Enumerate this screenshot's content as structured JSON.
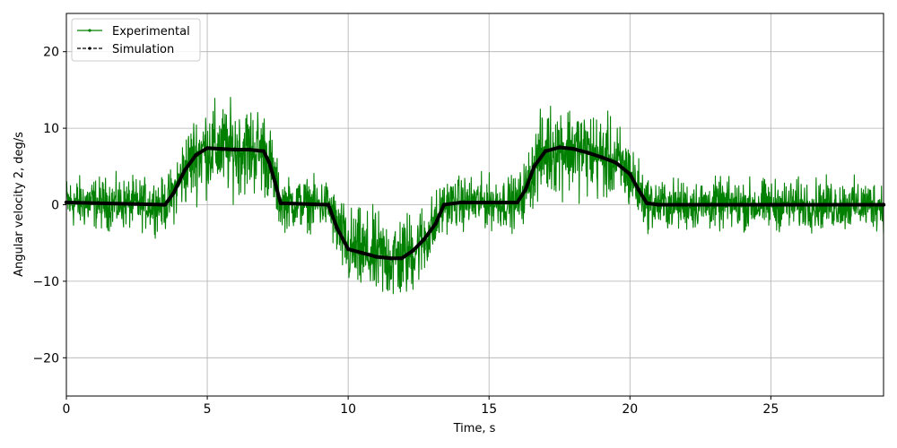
{
  "chart_data": {
    "type": "line",
    "title": "",
    "xlabel": "Time, s",
    "ylabel": "Angular velocity 2, deg/s",
    "xlim": [
      0,
      29
    ],
    "ylim": [
      -25,
      25
    ],
    "xticks": [
      0,
      5,
      10,
      15,
      20,
      25
    ],
    "yticks": [
      -20,
      -10,
      0,
      10,
      20
    ],
    "xtick_labels": [
      "0",
      "5",
      "10",
      "15",
      "20",
      "25"
    ],
    "ytick_labels": [
      "−20",
      "−10",
      "0",
      "10",
      "20"
    ],
    "grid": true,
    "legend_position": "upper-left",
    "series": [
      {
        "name": "Experimental",
        "color": "#008000",
        "line_style": "solid",
        "marker": "point",
        "noise_amplitude": 4.5,
        "x": [
          0,
          3.5,
          3.8,
          4.2,
          4.6,
          5.0,
          5.5,
          6.0,
          6.5,
          7.0,
          7.2,
          7.4,
          7.6,
          9.3,
          9.6,
          10.0,
          10.5,
          11.0,
          11.5,
          11.9,
          12.3,
          12.7,
          13.1,
          13.4,
          14.0,
          15.0,
          16.0,
          16.3,
          16.6,
          17.0,
          17.5,
          18.0,
          18.5,
          19.0,
          19.5,
          20.0,
          20.3,
          20.6,
          21.0,
          25.0,
          29.0
        ],
        "y": [
          0.3,
          0.0,
          1.5,
          4.5,
          6.5,
          7.4,
          7.3,
          7.2,
          7.2,
          7.0,
          5.5,
          3.0,
          0.2,
          0.0,
          -3.0,
          -5.8,
          -6.3,
          -6.8,
          -7.0,
          -7.0,
          -6.0,
          -4.5,
          -2.5,
          0.0,
          0.3,
          0.3,
          0.3,
          2.0,
          5.0,
          7.0,
          7.5,
          7.3,
          6.8,
          6.2,
          5.5,
          4.0,
          2.0,
          0.2,
          0.0,
          0.0,
          0.0
        ]
      },
      {
        "name": "Simulation",
        "color": "#000000",
        "line_style": "dashed",
        "marker": "point",
        "x": [
          0,
          3.5,
          3.8,
          4.2,
          4.6,
          5.0,
          5.5,
          6.0,
          6.5,
          7.0,
          7.2,
          7.4,
          7.6,
          9.3,
          9.6,
          10.0,
          10.5,
          11.0,
          11.5,
          11.9,
          12.3,
          12.7,
          13.1,
          13.4,
          14.0,
          15.0,
          16.0,
          16.3,
          16.6,
          17.0,
          17.5,
          18.0,
          18.5,
          19.0,
          19.5,
          20.0,
          20.3,
          20.6,
          21.0,
          25.0,
          29.0
        ],
        "y": [
          0.3,
          0.0,
          1.5,
          4.5,
          6.5,
          7.4,
          7.3,
          7.2,
          7.2,
          7.0,
          5.5,
          3.0,
          0.2,
          0.0,
          -3.0,
          -5.8,
          -6.3,
          -6.8,
          -7.0,
          -7.0,
          -6.0,
          -4.5,
          -2.5,
          0.0,
          0.3,
          0.3,
          0.3,
          2.0,
          5.0,
          7.0,
          7.5,
          7.3,
          6.8,
          6.2,
          5.5,
          4.0,
          2.0,
          0.2,
          0.0,
          0.0,
          0.0
        ]
      }
    ]
  }
}
